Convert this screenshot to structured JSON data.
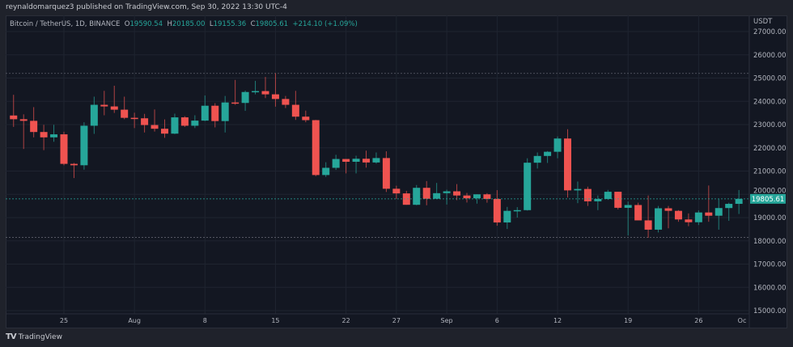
{
  "header": {
    "published": "reynaldomarquez3 published on TradingView.com, Sep 30, 2022 13:30 UTC-4"
  },
  "legend": {
    "symbol": "Bitcoin / TetherUS, 1D, BINANCE",
    "o_label": "O",
    "o": "19590.54",
    "h_label": "H",
    "h": "20185.00",
    "l_label": "L",
    "l": "19155.36",
    "c_label": "C",
    "c": "19805.61",
    "change": "+214.10 (+1.09%)"
  },
  "footer": {
    "brand": "TradingView",
    "logo": "TV"
  },
  "colors": {
    "up": "#26a69a",
    "down": "#ef5350",
    "background": "#131722",
    "grid": "#1f2430",
    "text": "#b2b5be"
  },
  "chart_data": {
    "type": "candlestick",
    "currency": "USDT",
    "ylim": [
      15000,
      27400
    ],
    "yticks": [
      "27000.00",
      "26000.00",
      "25000.00",
      "24000.00",
      "23000.00",
      "22000.00",
      "21000.00",
      "20000.00",
      "19000.00",
      "18000.00",
      "17000.00",
      "16000.00",
      "15000.00"
    ],
    "xticks": [
      {
        "label": "25",
        "date": "2022-07-25"
      },
      {
        "label": "Aug",
        "date": "2022-08-01"
      },
      {
        "label": "8",
        "date": "2022-08-08"
      },
      {
        "label": "15",
        "date": "2022-08-15"
      },
      {
        "label": "22",
        "date": "2022-08-22"
      },
      {
        "label": "27",
        "date": "2022-08-27"
      },
      {
        "label": "Sep",
        "date": "2022-09-01"
      },
      {
        "label": "6",
        "date": "2022-09-06"
      },
      {
        "label": "12",
        "date": "2022-09-12"
      },
      {
        "label": "19",
        "date": "2022-09-19"
      },
      {
        "label": "26",
        "date": "2022-09-26"
      },
      {
        "label": "Oc",
        "date": "2022-10-01"
      }
    ],
    "last_price": "19805.61",
    "horizontal_lines": [
      25200,
      18150
    ],
    "grid": true,
    "candles": [
      [
        "2022-07-19",
        22430,
        23800,
        21580,
        23390
      ],
      [
        "2022-07-20",
        23390,
        24280,
        22900,
        23230
      ],
      [
        "2022-07-21",
        23230,
        23440,
        21950,
        23160
      ],
      [
        "2022-07-22",
        23160,
        23750,
        22450,
        22680
      ],
      [
        "2022-07-23",
        22680,
        22990,
        21900,
        22450
      ],
      [
        "2022-07-24",
        22450,
        22990,
        22260,
        22580
      ],
      [
        "2022-07-25",
        22580,
        22690,
        21250,
        21310
      ],
      [
        "2022-07-26",
        21310,
        21350,
        20700,
        21250
      ],
      [
        "2022-07-27",
        21250,
        23100,
        21060,
        22950
      ],
      [
        "2022-07-28",
        22950,
        24200,
        22600,
        23850
      ],
      [
        "2022-07-29",
        23850,
        24450,
        23400,
        23780
      ],
      [
        "2022-07-30",
        23780,
        24670,
        23500,
        23640
      ],
      [
        "2022-07-31",
        23640,
        24200,
        23230,
        23290
      ],
      [
        "2022-08-01",
        23290,
        23510,
        22850,
        23270
      ],
      [
        "2022-08-02",
        23270,
        23460,
        22660,
        22980
      ],
      [
        "2022-08-03",
        22980,
        23650,
        22700,
        22820
      ],
      [
        "2022-08-04",
        22820,
        23220,
        22430,
        22610
      ],
      [
        "2022-08-05",
        22610,
        23470,
        22590,
        23310
      ],
      [
        "2022-08-06",
        23310,
        23360,
        22900,
        22950
      ],
      [
        "2022-08-07",
        22950,
        23400,
        22850,
        23170
      ],
      [
        "2022-08-08",
        23170,
        24250,
        23150,
        23810
      ],
      [
        "2022-08-09",
        23810,
        23920,
        22880,
        23150
      ],
      [
        "2022-08-10",
        23150,
        24230,
        22660,
        23950
      ],
      [
        "2022-08-11",
        23950,
        24920,
        23850,
        23930
      ],
      [
        "2022-08-12",
        23930,
        24460,
        23590,
        24400
      ],
      [
        "2022-08-13",
        24400,
        24880,
        24300,
        24440
      ],
      [
        "2022-08-14",
        24440,
        25050,
        24140,
        24300
      ],
      [
        "2022-08-15",
        24300,
        25210,
        23770,
        24100
      ],
      [
        "2022-08-16",
        24100,
        24230,
        23710,
        23850
      ],
      [
        "2022-08-17",
        23850,
        24450,
        23200,
        23340
      ],
      [
        "2022-08-18",
        23340,
        23600,
        23100,
        23190
      ],
      [
        "2022-08-19",
        23190,
        23200,
        20780,
        20830
      ],
      [
        "2022-08-20",
        20830,
        21380,
        20750,
        21140
      ],
      [
        "2022-08-21",
        21140,
        21700,
        21050,
        21520
      ],
      [
        "2022-08-22",
        21520,
        21520,
        20900,
        21400
      ],
      [
        "2022-08-23",
        21400,
        21660,
        20900,
        21530
      ],
      [
        "2022-08-24",
        21530,
        21880,
        21150,
        21370
      ],
      [
        "2022-08-25",
        21370,
        21800,
        21320,
        21560
      ],
      [
        "2022-08-26",
        21560,
        21850,
        20100,
        20240
      ],
      [
        "2022-08-27",
        20240,
        20370,
        19800,
        20040
      ],
      [
        "2022-08-28",
        20040,
        20150,
        19550,
        19550
      ],
      [
        "2022-08-29",
        19550,
        20400,
        19530,
        20280
      ],
      [
        "2022-08-30",
        20280,
        20570,
        19530,
        19810
      ],
      [
        "2022-08-31",
        19810,
        20490,
        19800,
        20050
      ],
      [
        "2022-09-01",
        20050,
        20200,
        19560,
        20130
      ],
      [
        "2022-09-02",
        20130,
        20440,
        19750,
        19950
      ],
      [
        "2022-09-03",
        19950,
        20060,
        19650,
        19830
      ],
      [
        "2022-09-04",
        19830,
        20000,
        19600,
        20000
      ],
      [
        "2022-09-05",
        20000,
        20050,
        19640,
        19800
      ],
      [
        "2022-09-06",
        19800,
        20180,
        18650,
        18790
      ],
      [
        "2022-09-07",
        18790,
        19460,
        18510,
        19290
      ],
      [
        "2022-09-08",
        19290,
        19450,
        19000,
        19320
      ],
      [
        "2022-09-09",
        19320,
        21550,
        19300,
        21360
      ],
      [
        "2022-09-10",
        21360,
        21800,
        21110,
        21650
      ],
      [
        "2022-09-11",
        21650,
        21860,
        21350,
        21830
      ],
      [
        "2022-09-12",
        21830,
        22490,
        21550,
        22400
      ],
      [
        "2022-09-13",
        22400,
        22800,
        19860,
        20170
      ],
      [
        "2022-09-14",
        20170,
        20550,
        19620,
        20230
      ],
      [
        "2022-09-15",
        20230,
        20330,
        19500,
        19700
      ],
      [
        "2022-09-16",
        19700,
        19950,
        19320,
        19800
      ],
      [
        "2022-09-17",
        19800,
        20190,
        19760,
        20110
      ],
      [
        "2022-09-18",
        20110,
        20110,
        19350,
        19420
      ],
      [
        "2022-09-19",
        19420,
        19690,
        18230,
        19540
      ],
      [
        "2022-09-20",
        19540,
        19640,
        18900,
        18880
      ],
      [
        "2022-09-21",
        18880,
        19950,
        18130,
        18480
      ],
      [
        "2022-09-22",
        18480,
        19500,
        18360,
        19400
      ],
      [
        "2022-09-23",
        19400,
        19500,
        18540,
        19290
      ],
      [
        "2022-09-24",
        19290,
        19320,
        18820,
        18920
      ],
      [
        "2022-09-25",
        18920,
        19180,
        18630,
        18800
      ],
      [
        "2022-09-26",
        18800,
        19310,
        18680,
        19220
      ],
      [
        "2022-09-27",
        19220,
        20380,
        18820,
        19080
      ],
      [
        "2022-09-28",
        19080,
        19800,
        18480,
        19410
      ],
      [
        "2022-09-29",
        19410,
        19640,
        18860,
        19590
      ],
      [
        "2022-09-30",
        19590.54,
        20185,
        19155.36,
        19805.61
      ]
    ]
  }
}
